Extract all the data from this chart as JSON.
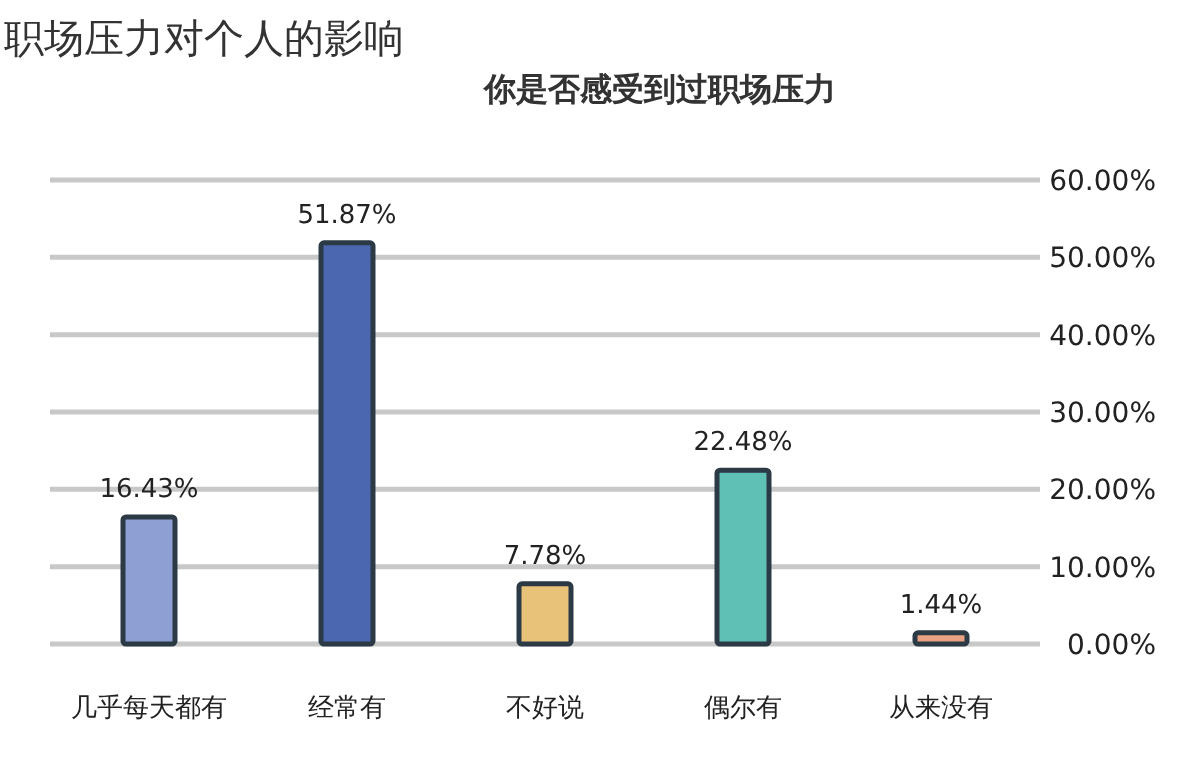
{
  "chart_data": {
    "type": "bar",
    "title": "职场压力对个人的影响",
    "subtitle": "你是否感受到过职场压力",
    "categories": [
      "几乎每天都有",
      "经常有",
      "不好说",
      "偶尔有",
      "从来没有"
    ],
    "values": [
      16.43,
      51.87,
      7.78,
      22.48,
      1.44
    ],
    "colors": [
      "#8d9fd3",
      "#4a67b0",
      "#e9c27a",
      "#5fc1b5",
      "#e9a183"
    ],
    "value_labels": [
      "16.43%",
      "51.87%",
      "7.78%",
      "22.48%",
      "1.44%"
    ],
    "ylim": [
      0,
      60
    ],
    "yticks": [
      {
        "value": 0,
        "label": "0.00%"
      },
      {
        "value": 10,
        "label": "10.00%"
      },
      {
        "value": 20,
        "label": "20.00%"
      },
      {
        "value": 30,
        "label": "30.00%"
      },
      {
        "value": 40,
        "label": "40.00%"
      },
      {
        "value": 50,
        "label": "50.00%"
      },
      {
        "value": 60,
        "label": "60.00%"
      }
    ],
    "grid": "y"
  }
}
